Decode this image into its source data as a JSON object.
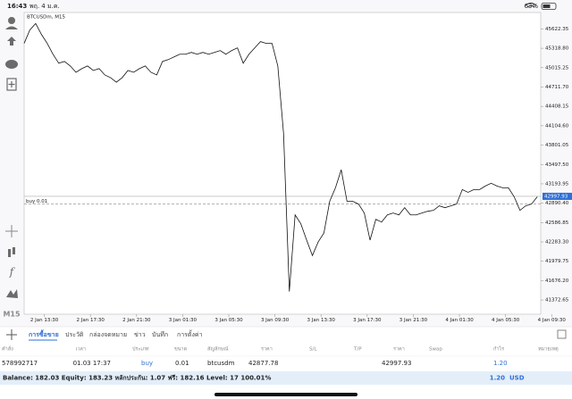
{
  "status_bar": {
    "time": "16:43",
    "date": "พฤ. 4 ม.ค.",
    "battery": "63%"
  },
  "toolbar": {
    "timeframe": "M15"
  },
  "chart_data": {
    "type": "line",
    "title": "BTCUSDm, M15",
    "color": "#111111",
    "values": [
      45396,
      45608,
      45707,
      45537,
      45396,
      45226,
      45085,
      45113,
      45042,
      44943,
      45000,
      45042,
      44971,
      45000,
      44901,
      44858,
      44787,
      44858,
      44971,
      44943,
      45000,
      45042,
      44943,
      44901,
      45113,
      45141,
      45184,
      45226,
      45226,
      45254,
      45226,
      45254,
      45226,
      45254,
      45283,
      45226,
      45283,
      45325,
      45085,
      45226,
      45325,
      45424,
      45396,
      45396,
      45042,
      43981,
      41505,
      42707,
      42566,
      42311,
      42070,
      42283,
      42424,
      42920,
      43132,
      43415,
      42920,
      42920,
      42877,
      42736,
      42311,
      42637,
      42594,
      42707,
      42736,
      42707,
      42820,
      42707,
      42707,
      42736,
      42764,
      42778,
      42849,
      42820,
      42849,
      42877,
      43104,
      43061,
      43104,
      43104,
      43160,
      43203,
      43160,
      43132,
      43132,
      42990,
      42778,
      42849,
      42877,
      42990
    ],
    "xlim": [
      0,
      89.6
    ],
    "xticks": [
      {
        "value": 3.5,
        "label": "2 Jan 13:30"
      },
      {
        "value": 11.5,
        "label": "2 Jan 17:30"
      },
      {
        "value": 19.5,
        "label": "2 Jan 21:30"
      },
      {
        "value": 27.5,
        "label": "3 Jan 01:30"
      },
      {
        "value": 35.5,
        "label": "3 Jan 05:30"
      },
      {
        "value": 43.5,
        "label": "3 Jan 09:30"
      },
      {
        "value": 51.5,
        "label": "3 Jan 13:30"
      },
      {
        "value": 59.5,
        "label": "3 Jan 17:30"
      },
      {
        "value": 67.5,
        "label": "3 Jan 21:30"
      },
      {
        "value": 75.5,
        "label": "4 Jan 01:30"
      },
      {
        "value": 83.5,
        "label": "4 Jan 05:30"
      },
      {
        "value": 91.5,
        "label": "4 Jan 09:30"
      }
    ],
    "ylim": [
      41150,
      45880
    ],
    "yticks": [
      45622.35,
      {
        "value": 45318.8,
        "label": "45318.80"
      },
      45015.25,
      {
        "value": 44711.7,
        "label": "44711.70"
      },
      44408.15,
      {
        "value": 44104.6,
        "label": "44104.60"
      },
      43801.05,
      {
        "value": 43497.5,
        "label": "43497.50"
      },
      43193.95,
      {
        "value": 42890.4,
        "label": "42890.40"
      },
      42586.85,
      {
        "value": 42283.3,
        "label": "42283.30"
      },
      41979.75,
      {
        "value": 41676.2,
        "label": "41676.20"
      },
      41372.65
    ],
    "current_price": 42997.93,
    "current_price_color": "#2f6fd6",
    "buy_line": {
      "label": "buy 0.01",
      "value": 42877.78
    }
  },
  "tabs": [
    "การซื้อขาย",
    "ประวัติ",
    "กล่องจดหมาย",
    "ข่าว",
    "บันทึก",
    "การตั้งค่า"
  ],
  "table": {
    "headers": [
      "คำสั่ง",
      "เวลา",
      "ประเภท",
      "ขนาด",
      "สัญลักษณ์",
      "ราคา",
      "S/L",
      "T/P",
      "ราคา",
      "Swap",
      "กำไร",
      "หมายเหตุ"
    ],
    "row": {
      "order": "578992717",
      "time": "01.03 17:37",
      "type": "buy",
      "volume": "0.01",
      "symbol": "btcusdm",
      "open_price": "42877.78",
      "price": "42997.93",
      "profit": "1.20"
    }
  },
  "summary": {
    "text": "Balance: 182.03 Equity: 183.23 หลักประกัน: 1.07 ฟรี: 182.16 Level: 17 100.01%",
    "profit": "1.20",
    "currency": "USD"
  }
}
